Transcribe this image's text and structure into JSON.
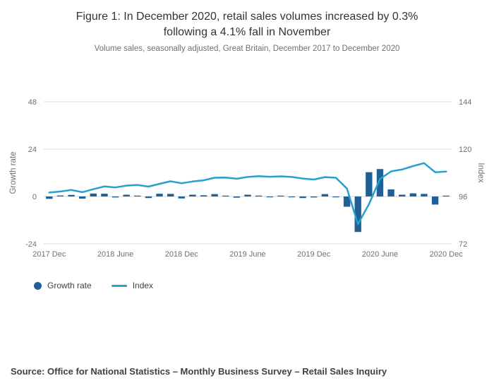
{
  "header": {
    "title": "Figure 1: In December 2020, retail sales volumes increased by 0.3% following a 4.1% fall in November",
    "subtitle": "Volume sales, seasonally adjusted, Great Britain, December 2017 to December 2020"
  },
  "legend": {
    "growth_rate": "Growth rate",
    "index": "Index"
  },
  "footer": {
    "source": "Source: Office for National Statistics – Monthly Business Survey – Retail Sales Inquiry"
  },
  "chart_data": {
    "type": "bar+line",
    "months": [
      "2017 Dec",
      "2018 Jan",
      "2018 Feb",
      "2018 Mar",
      "2018 Apr",
      "2018 May",
      "2018 Jun",
      "2018 Jul",
      "2018 Aug",
      "2018 Sep",
      "2018 Oct",
      "2018 Nov",
      "2018 Dec",
      "2019 Jan",
      "2019 Feb",
      "2019 Mar",
      "2019 Apr",
      "2019 May",
      "2019 Jun",
      "2019 Jul",
      "2019 Aug",
      "2019 Sep",
      "2019 Oct",
      "2019 Nov",
      "2019 Dec",
      "2020 Jan",
      "2020 Feb",
      "2020 Mar",
      "2020 Apr",
      "2020 May",
      "2020 Jun",
      "2020 Jul",
      "2020 Aug",
      "2020 Sep",
      "2020 Oct",
      "2020 Nov",
      "2020 Dec"
    ],
    "series": [
      {
        "name": "Growth rate",
        "type": "bar",
        "axis": "left",
        "color": "#206095",
        "values": [
          -1.2,
          0.5,
          0.8,
          -1.1,
          1.5,
          1.4,
          -0.5,
          0.9,
          0.3,
          -0.8,
          1.4,
          1.3,
          -1.0,
          0.9,
          0.6,
          1.2,
          0.1,
          -0.6,
          0.9,
          0.4,
          -0.3,
          0.2,
          -0.3,
          -0.8,
          -0.5,
          1.2,
          -0.3,
          -5.2,
          -18.0,
          12.3,
          13.9,
          3.6,
          0.9,
          1.6,
          1.3,
          -4.1,
          0.3
        ]
      },
      {
        "name": "Index",
        "type": "line",
        "axis": "right",
        "color": "#27a0cc",
        "values": [
          98.0,
          98.5,
          99.3,
          98.2,
          99.7,
          101.1,
          100.6,
          101.5,
          101.8,
          101.0,
          102.4,
          103.7,
          102.7,
          103.6,
          104.2,
          105.5,
          105.6,
          105.0,
          105.9,
          106.3,
          106.0,
          106.2,
          105.9,
          105.1,
          104.6,
          105.8,
          105.5,
          100.0,
          82.0,
          92.1,
          104.9,
          108.7,
          109.7,
          111.4,
          112.9,
          108.3,
          108.6
        ]
      }
    ],
    "left_axis": {
      "title": "Growth rate",
      "range": [
        -24,
        48
      ],
      "ticks": [
        -24,
        0,
        24,
        48
      ]
    },
    "right_axis": {
      "title": "Index",
      "range": [
        72,
        144
      ],
      "ticks": [
        72,
        96,
        120,
        144
      ]
    },
    "x_ticks": [
      {
        "index": 0,
        "label": "2017 Dec"
      },
      {
        "index": 6,
        "label": "2018 June"
      },
      {
        "index": 12,
        "label": "2018 Dec"
      },
      {
        "index": 18,
        "label": "2019 June"
      },
      {
        "index": 24,
        "label": "2019 Dec"
      },
      {
        "index": 30,
        "label": "2020 June"
      },
      {
        "index": 36,
        "label": "2020 Dec"
      }
    ],
    "grid": true,
    "gridline_color": "#d9d9d9",
    "tick_label_color": "#707071",
    "legend_position": "bottom-left"
  }
}
